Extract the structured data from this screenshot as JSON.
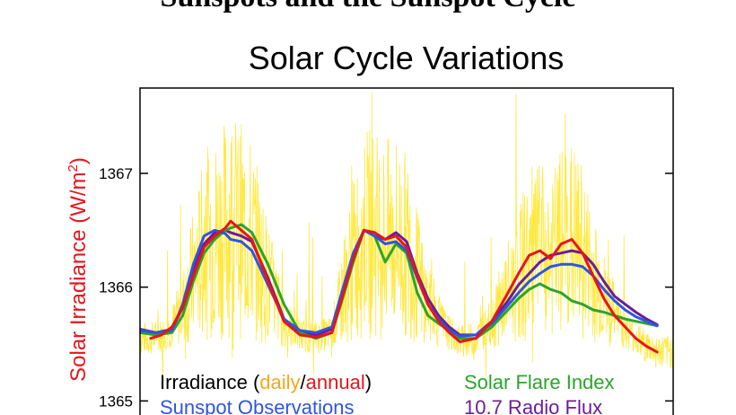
{
  "page": {
    "header": "Sunspots and the Sunspot Cycle"
  },
  "chart_data": {
    "type": "line",
    "title": "Solar Cycle Variations",
    "ylabel": {
      "prefix": "Solar Irradiance (W/m",
      "sup": "2",
      "suffix": ")"
    },
    "ylim": [
      1364.75,
      1367.75
    ],
    "xlim": [
      0,
      100
    ],
    "yticks": [
      1365,
      1366,
      1367
    ],
    "grid": false,
    "legend_placement": "bottom",
    "colors": {
      "irradiance_daily": "#FFE100",
      "irradiance_annual": "#E8141B",
      "solar_flare_index": "#2AA52A",
      "sunspot_observations": "#2F55E0",
      "radio_flux": "#6A1E9A"
    },
    "legend": {
      "irradiance": "Irradiance (",
      "daily": "daily",
      "slash": "/",
      "annual": "annual",
      "close": ")",
      "flare": "Solar Flare Index",
      "sunspot": "Sunspot Observations",
      "radio": "10.7 Radio Flux"
    },
    "series": [
      {
        "key": "radio_flux",
        "x": [
          0,
          3,
          6,
          8,
          10,
          12,
          14,
          16,
          17,
          19,
          21,
          24,
          27,
          30,
          33,
          36,
          38,
          40,
          42,
          44,
          46,
          48,
          50,
          52,
          54,
          56,
          58,
          60,
          63,
          66,
          69,
          71,
          73,
          75,
          77,
          79,
          81,
          83,
          85,
          87,
          89,
          91,
          93,
          95,
          97
        ],
        "y": [
          1365.63,
          1365.6,
          1365.63,
          1365.82,
          1366.15,
          1366.38,
          1366.48,
          1366.5,
          1366.48,
          1366.45,
          1366.4,
          1366.08,
          1365.72,
          1365.6,
          1365.58,
          1365.63,
          1365.95,
          1366.28,
          1366.5,
          1366.45,
          1366.42,
          1366.48,
          1366.4,
          1366.12,
          1365.9,
          1365.75,
          1365.65,
          1365.58,
          1365.58,
          1365.7,
          1365.88,
          1366.02,
          1366.12,
          1366.22,
          1366.28,
          1366.3,
          1366.32,
          1366.3,
          1366.2,
          1366.05,
          1365.92,
          1365.85,
          1365.78,
          1365.72,
          1365.67
        ]
      },
      {
        "key": "solar_flare_index",
        "x": [
          0,
          3,
          6,
          8,
          10,
          12,
          14,
          16,
          17,
          19,
          21,
          24,
          27,
          30,
          33,
          36,
          38,
          40,
          42,
          44,
          46,
          48,
          50,
          52,
          54,
          56,
          58,
          60,
          63,
          66,
          69,
          71,
          73,
          75,
          77,
          79,
          81,
          83,
          85,
          87,
          89,
          91,
          93,
          95,
          97
        ],
        "y": [
          1365.6,
          1365.58,
          1365.6,
          1365.75,
          1366.05,
          1366.3,
          1366.42,
          1366.5,
          1366.52,
          1366.55,
          1366.48,
          1366.2,
          1365.85,
          1365.6,
          1365.55,
          1365.6,
          1365.9,
          1366.22,
          1366.5,
          1366.45,
          1366.22,
          1366.38,
          1366.3,
          1365.95,
          1365.75,
          1365.68,
          1365.62,
          1365.55,
          1365.55,
          1365.65,
          1365.8,
          1365.9,
          1365.98,
          1366.03,
          1365.98,
          1365.95,
          1365.88,
          1365.85,
          1365.8,
          1365.78,
          1365.75,
          1365.72,
          1365.7,
          1365.68,
          1365.66
        ]
      },
      {
        "key": "sunspot_observations",
        "x": [
          0,
          3,
          6,
          8,
          10,
          12,
          14,
          16,
          17,
          19,
          21,
          24,
          27,
          30,
          33,
          36,
          38,
          40,
          42,
          44,
          46,
          48,
          50,
          52,
          54,
          56,
          58,
          60,
          63,
          66,
          69,
          71,
          73,
          75,
          77,
          79,
          81,
          83,
          85,
          87,
          89,
          91,
          93,
          95,
          97
        ],
        "y": [
          1365.62,
          1365.6,
          1365.62,
          1365.85,
          1366.2,
          1366.45,
          1366.5,
          1366.47,
          1366.42,
          1366.4,
          1366.32,
          1366.02,
          1365.72,
          1365.62,
          1365.6,
          1365.65,
          1365.98,
          1366.3,
          1366.5,
          1366.45,
          1366.38,
          1366.4,
          1366.32,
          1366.08,
          1365.85,
          1365.72,
          1365.62,
          1365.57,
          1365.58,
          1365.68,
          1365.84,
          1365.95,
          1366.05,
          1366.12,
          1366.18,
          1366.2,
          1366.2,
          1366.18,
          1366.1,
          1365.98,
          1365.88,
          1365.8,
          1365.74,
          1365.7,
          1365.66
        ]
      },
      {
        "key": "irradiance_annual",
        "x": [
          2,
          4,
          6,
          8,
          10,
          12,
          14,
          16,
          17,
          19,
          21,
          24,
          27,
          30,
          33,
          36,
          38,
          40,
          42,
          44,
          46,
          48,
          50,
          52,
          54,
          56,
          58,
          60,
          63,
          66,
          69,
          71,
          73,
          75,
          77,
          79,
          81,
          83,
          85,
          87,
          89,
          91,
          93,
          95,
          97
        ],
        "y": [
          1365.55,
          1365.58,
          1365.65,
          1365.82,
          1366.1,
          1366.35,
          1366.45,
          1366.52,
          1366.58,
          1366.5,
          1366.42,
          1366.05,
          1365.7,
          1365.58,
          1365.56,
          1365.6,
          1365.92,
          1366.25,
          1366.5,
          1366.48,
          1366.42,
          1366.45,
          1366.35,
          1366.1,
          1365.85,
          1365.7,
          1365.6,
          1365.52,
          1365.55,
          1365.7,
          1365.95,
          1366.12,
          1366.28,
          1366.32,
          1366.25,
          1366.38,
          1366.42,
          1366.3,
          1366.1,
          1365.9,
          1365.75,
          1365.65,
          1365.55,
          1365.48,
          1365.43
        ]
      }
    ]
  }
}
